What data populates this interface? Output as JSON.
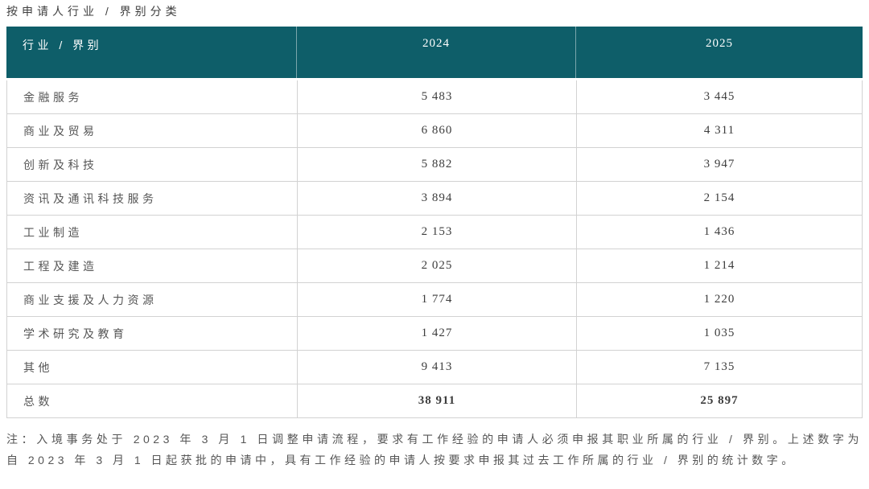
{
  "page": {
    "title": "按申请人行业 / 界别分类",
    "note": "注：入境事务处于 2023 年 3 月 1 日调整申请流程，要求有工作经验的申请人必须申报其职业所属的行业 / 界别。上述数字为自 2023 年 3 月 1 日起获批的申请中，具有工作经验的申请人按要求申报其过去工作所属的行业 / 界别的统计数字。"
  },
  "table": {
    "header": {
      "category": "行业 / 界别",
      "col_2024": "2024",
      "col_2025": "2025"
    },
    "rows": [
      {
        "label": "金融服务",
        "v2024": "5 483",
        "v2025": "3 445",
        "total": false
      },
      {
        "label": "商业及贸易",
        "v2024": "6 860",
        "v2025": "4 311",
        "total": false
      },
      {
        "label": "创新及科技",
        "v2024": "5 882",
        "v2025": "3 947",
        "total": false
      },
      {
        "label": "资讯及通讯科技服务",
        "v2024": "3 894",
        "v2025": "2 154",
        "total": false
      },
      {
        "label": "工业制造",
        "v2024": "2 153",
        "v2025": "1 436",
        "total": false
      },
      {
        "label": "工程及建造",
        "v2024": "2 025",
        "v2025": "1 214",
        "total": false
      },
      {
        "label": "商业支援及人力资源",
        "v2024": "1 774",
        "v2025": "1 220",
        "total": false
      },
      {
        "label": "学术研究及教育",
        "v2024": "1 427",
        "v2025": "1 035",
        "total": false
      },
      {
        "label": "其他",
        "v2024": "9 413",
        "v2025": "7 135",
        "total": false
      },
      {
        "label": "总数",
        "v2024": "38 911",
        "v2025": "25 897",
        "total": true
      }
    ]
  },
  "chart_data": {
    "type": "table",
    "title": "按申请人行业 / 界别分类",
    "categories": [
      "金融服务",
      "商业及贸易",
      "创新及科技",
      "资讯及通讯科技服务",
      "工业制造",
      "工程及建造",
      "商业支援及人力资源",
      "学术研究及教育",
      "其他",
      "总数"
    ],
    "series": [
      {
        "name": "2024",
        "values": [
          5483,
          6860,
          5882,
          3894,
          2153,
          2025,
          1774,
          1427,
          9413,
          38911
        ]
      },
      {
        "name": "2025",
        "values": [
          3445,
          4311,
          3947,
          2154,
          1436,
          1214,
          1220,
          1035,
          7135,
          25897
        ]
      }
    ]
  },
  "colors": {
    "header_bg": "#0e5e69",
    "header_text": "#ffffff",
    "label_text": "#565656",
    "number_text": "#3d3d3d",
    "border": "#d2d2d2"
  }
}
